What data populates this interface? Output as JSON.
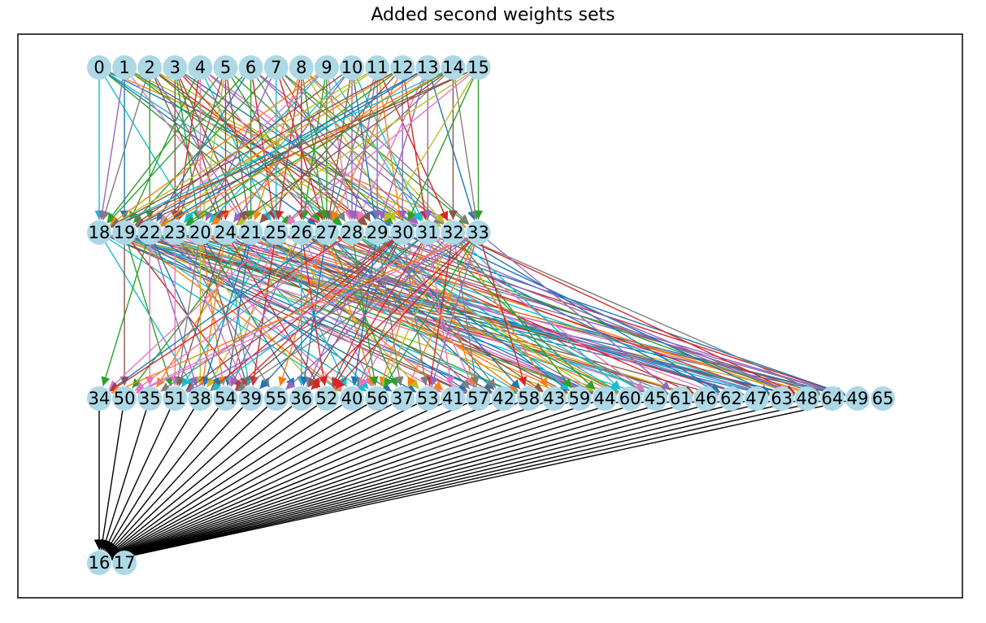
{
  "title": "Added second weights sets",
  "node_color": "#add8e6",
  "edge_palette": [
    "#1f77b4",
    "#ff7f0e",
    "#2ca02c",
    "#d62728",
    "#9467bd",
    "#8c564b",
    "#e377c2",
    "#7f7f7f",
    "#bcbd22",
    "#17becf"
  ],
  "output_edge_color": "#000000",
  "layers": [
    {
      "name": "input",
      "nodes": [
        "0",
        "1",
        "2",
        "3",
        "4",
        "5",
        "6",
        "7",
        "8",
        "9",
        "10",
        "11",
        "12",
        "13",
        "14",
        "15"
      ]
    },
    {
      "name": "hidden-1",
      "nodes": [
        "18",
        "19",
        "22",
        "23",
        "20",
        "24",
        "21",
        "25",
        "26",
        "27",
        "28",
        "29",
        "30",
        "31",
        "32",
        "33"
      ]
    },
    {
      "name": "hidden-2",
      "nodes": [
        "34",
        "50",
        "35",
        "51",
        "38",
        "54",
        "39",
        "55",
        "36",
        "52",
        "40",
        "56",
        "37",
        "53",
        "41",
        "57",
        "42",
        "58",
        "43",
        "59",
        "44",
        "60",
        "45",
        "61",
        "46",
        "62",
        "47",
        "63",
        "48",
        "64",
        "49",
        "65"
      ]
    },
    {
      "name": "output",
      "nodes": [
        "16",
        "17"
      ]
    }
  ]
}
